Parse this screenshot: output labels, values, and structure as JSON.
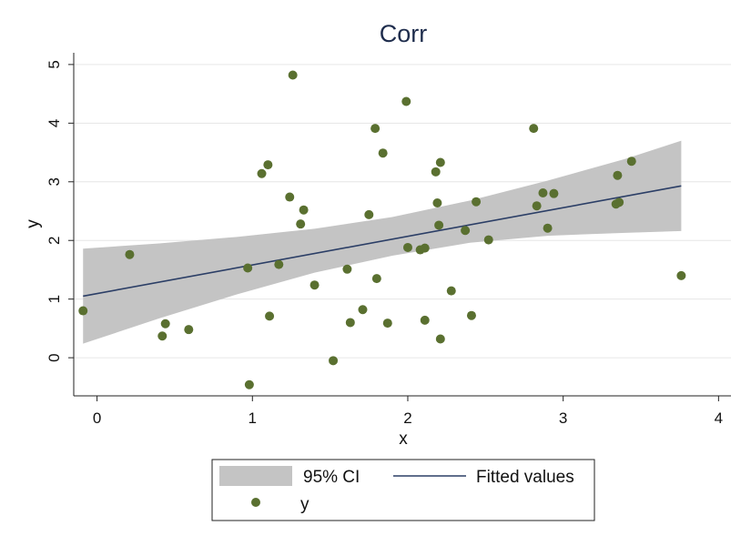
{
  "chart_data": {
    "type": "scatter",
    "title": "Corr",
    "xlabel": "x",
    "ylabel": "y",
    "xlim": [
      -0.15,
      4.08
    ],
    "ylim": [
      -0.65,
      5.2
    ],
    "x_ticks": [
      0,
      1,
      2,
      3,
      4
    ],
    "y_ticks": [
      0,
      1,
      2,
      3,
      4,
      5
    ],
    "grid": "horizontal",
    "legend": {
      "placement": "bottom",
      "items": [
        {
          "key": "ci",
          "label": "95% CI"
        },
        {
          "key": "fit",
          "label": "Fitted values"
        },
        {
          "key": "y",
          "label": "y"
        }
      ]
    },
    "colors": {
      "points": "#5a7030",
      "fit_line": "#2b3e66",
      "ci_band": "#c4c4c4",
      "title": "#1f2d4d"
    },
    "series": [
      {
        "name": "y",
        "type": "scatter",
        "points": [
          [
            -0.09,
            0.8
          ],
          [
            0.21,
            1.76
          ],
          [
            0.42,
            0.37
          ],
          [
            0.44,
            0.58
          ],
          [
            0.59,
            0.48
          ],
          [
            0.97,
            1.53
          ],
          [
            0.98,
            -0.46
          ],
          [
            1.06,
            3.14
          ],
          [
            1.1,
            3.29
          ],
          [
            1.11,
            0.71
          ],
          [
            1.17,
            1.59
          ],
          [
            1.24,
            2.74
          ],
          [
            1.26,
            4.82
          ],
          [
            1.31,
            2.28
          ],
          [
            1.33,
            2.52
          ],
          [
            1.4,
            1.24
          ],
          [
            1.52,
            -0.05
          ],
          [
            1.61,
            1.51
          ],
          [
            1.63,
            0.6
          ],
          [
            1.71,
            0.82
          ],
          [
            1.75,
            2.44
          ],
          [
            1.79,
            3.91
          ],
          [
            1.8,
            1.35
          ],
          [
            1.84,
            3.49
          ],
          [
            1.87,
            0.59
          ],
          [
            1.99,
            4.37
          ],
          [
            2.0,
            1.88
          ],
          [
            2.08,
            1.84
          ],
          [
            2.11,
            1.87
          ],
          [
            2.11,
            0.64
          ],
          [
            2.18,
            3.17
          ],
          [
            2.19,
            2.64
          ],
          [
            2.2,
            2.26
          ],
          [
            2.21,
            3.33
          ],
          [
            2.21,
            0.32
          ],
          [
            2.28,
            1.14
          ],
          [
            2.37,
            2.17
          ],
          [
            2.41,
            0.72
          ],
          [
            2.44,
            2.66
          ],
          [
            2.52,
            2.01
          ],
          [
            2.81,
            3.91
          ],
          [
            2.83,
            2.59
          ],
          [
            2.87,
            2.81
          ],
          [
            2.9,
            2.21
          ],
          [
            2.94,
            2.8
          ],
          [
            3.34,
            2.62
          ],
          [
            3.35,
            3.11
          ],
          [
            3.36,
            2.65
          ],
          [
            3.44,
            3.35
          ],
          [
            3.76,
            1.4
          ]
        ]
      },
      {
        "name": "Fitted values",
        "type": "line",
        "x": [
          -0.09,
          3.76
        ],
        "y": [
          1.05,
          2.93
        ]
      },
      {
        "name": "95% CI",
        "type": "area",
        "x": [
          -0.09,
          0.4,
          0.9,
          1.4,
          1.9,
          2.4,
          2.9,
          3.4,
          3.76
        ],
        "upper": [
          1.86,
          1.95,
          2.06,
          2.2,
          2.4,
          2.68,
          3.02,
          3.39,
          3.7
        ],
        "lower": [
          0.24,
          0.67,
          1.08,
          1.45,
          1.74,
          1.96,
          2.08,
          2.13,
          2.16
        ]
      }
    ]
  }
}
